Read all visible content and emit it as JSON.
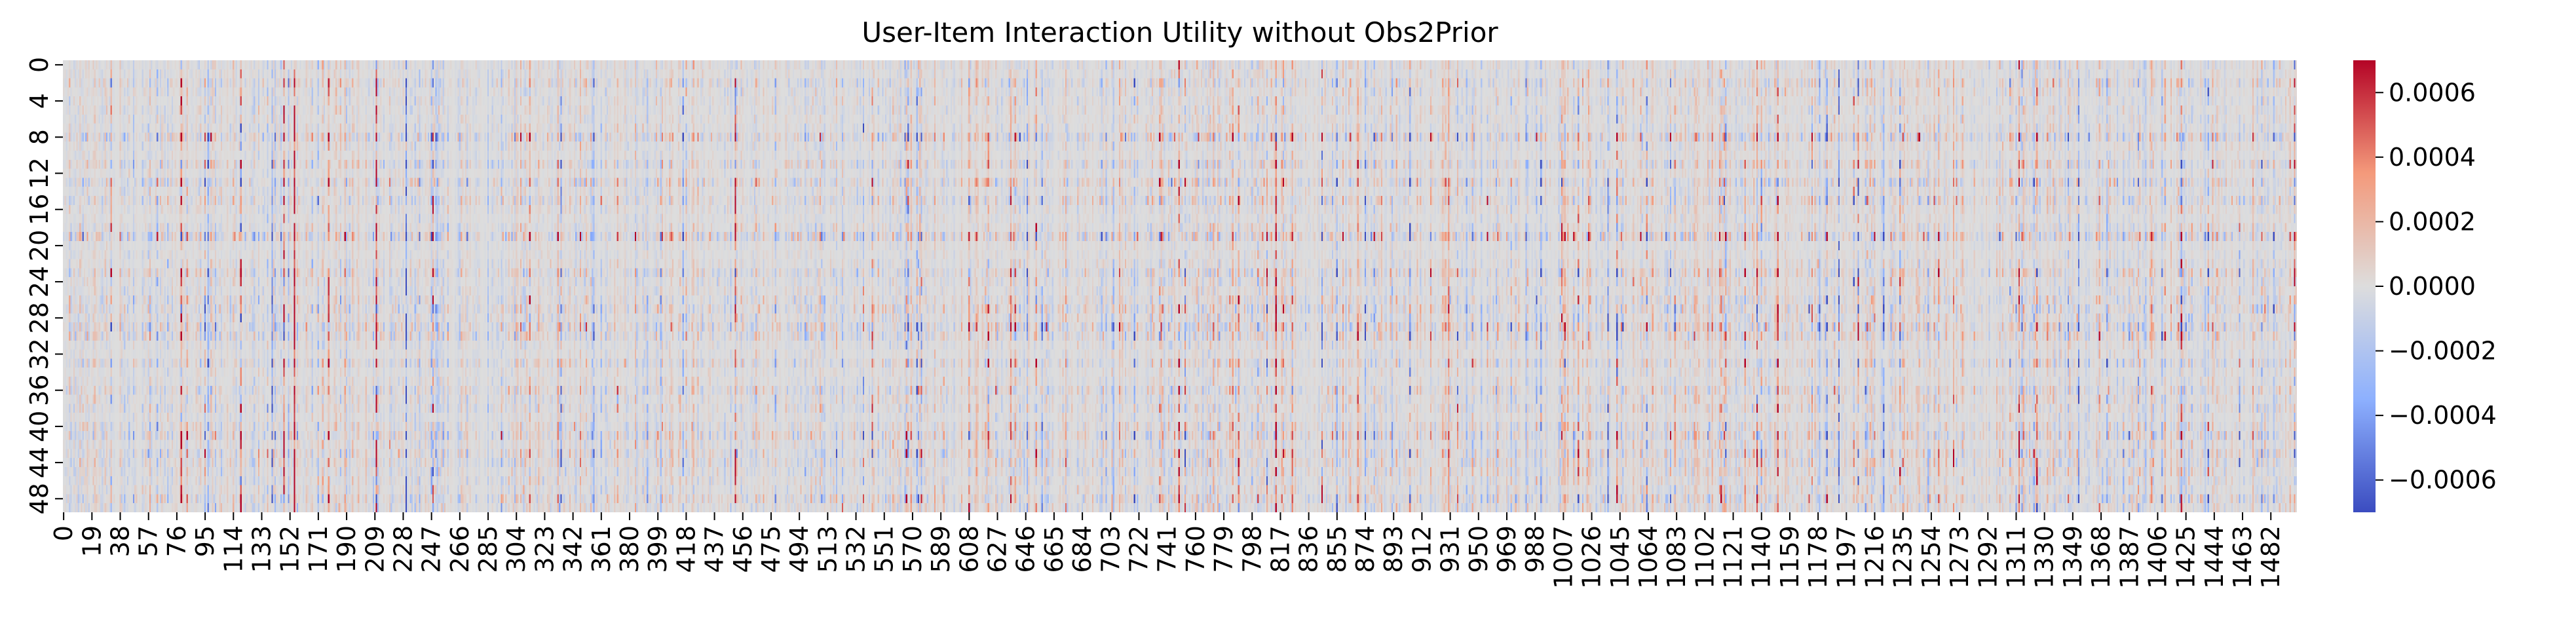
{
  "chart_data": {
    "type": "heatmap",
    "title": "User-Item Interaction Utility without Obs2Prior",
    "xlabel": "",
    "ylabel": "",
    "rows": 50,
    "cols": 1500,
    "x_ticks": [
      0,
      19,
      38,
      57,
      76,
      95,
      114,
      133,
      152,
      171,
      190,
      209,
      228,
      247,
      266,
      285,
      304,
      323,
      342,
      361,
      380,
      399,
      418,
      437,
      456,
      475,
      494,
      513,
      532,
      551,
      570,
      589,
      608,
      627,
      646,
      665,
      684,
      703,
      722,
      741,
      760,
      779,
      798,
      817,
      836,
      855,
      874,
      893,
      912,
      931,
      950,
      969,
      988,
      1007,
      1026,
      1045,
      1064,
      1083,
      1102,
      1121,
      1140,
      1159,
      1178,
      1197,
      1216,
      1235,
      1254,
      1273,
      1292,
      1311,
      1330,
      1349,
      1368,
      1387,
      1406,
      1425,
      1444,
      1463,
      1482
    ],
    "y_ticks": [
      0,
      4,
      8,
      12,
      16,
      20,
      24,
      28,
      32,
      36,
      40,
      44,
      48
    ],
    "colormap": "coolwarm",
    "colorbar": {
      "min": -0.0007,
      "max": 0.0007,
      "ticks": [
        0.0006,
        0.0004,
        0.0002,
        0.0,
        -0.0002,
        -0.0004,
        -0.0006
      ],
      "tick_labels": [
        "0.0006",
        "0.0004",
        "0.0002",
        "0.0000",
        "−0.0002",
        "−0.0004",
        "−0.0006"
      ]
    },
    "colors": {
      "low": "#3b4cc0",
      "mid": "#dddddd",
      "high": "#b40426"
    }
  }
}
